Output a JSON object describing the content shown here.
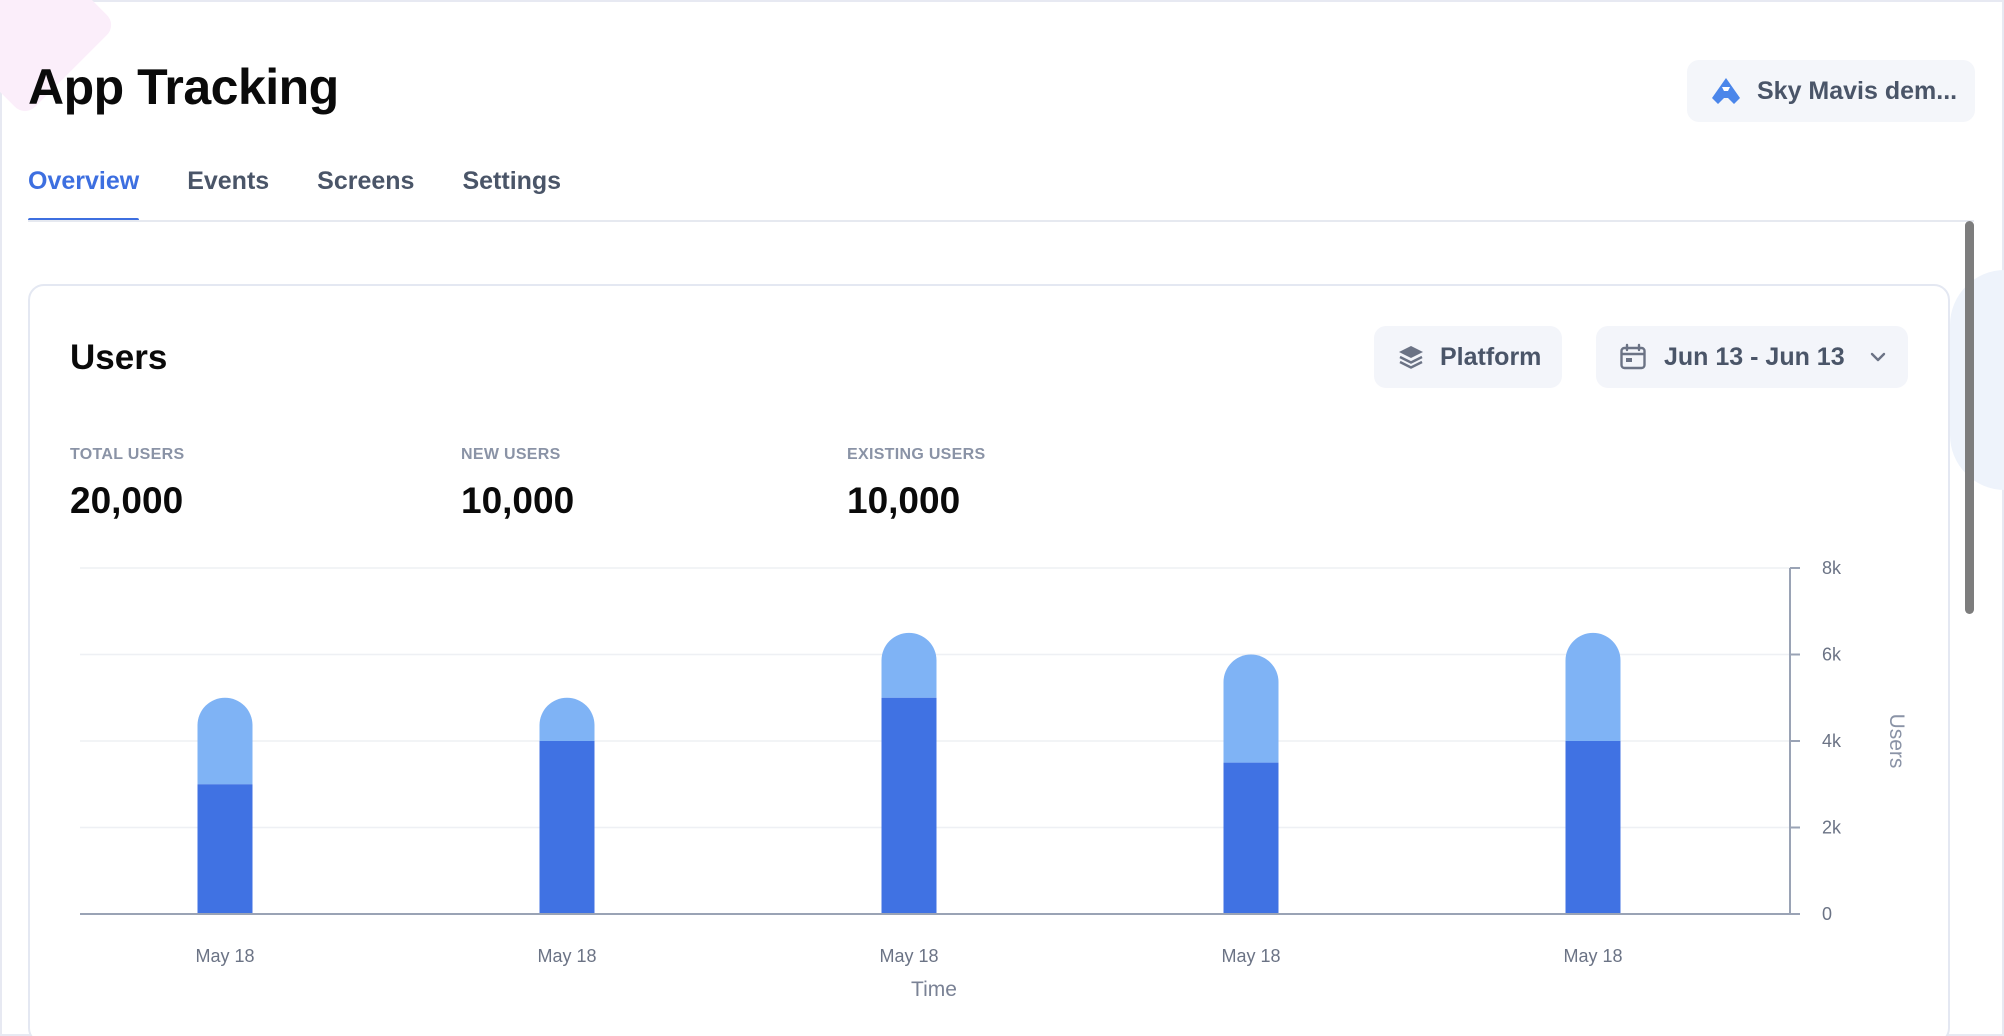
{
  "page": {
    "title": "App Tracking"
  },
  "org": {
    "label": "Sky Mavis dem..."
  },
  "tabs": [
    {
      "label": "Overview",
      "active": true
    },
    {
      "label": "Events",
      "active": false
    },
    {
      "label": "Screens",
      "active": false
    },
    {
      "label": "Settings",
      "active": false
    }
  ],
  "card": {
    "title": "Users",
    "platform_label": "Platform",
    "date_range": "Jun 13 - Jun 13"
  },
  "stats": [
    {
      "label": "TOTAL USERS",
      "value": "20,000"
    },
    {
      "label": "NEW USERS",
      "value": "10,000"
    },
    {
      "label": "EXISTING USERS",
      "value": "10,000"
    }
  ],
  "colors": {
    "accent": "#3d6fe0",
    "bar_dark": "#4072e3",
    "bar_light": "#7fb3f5",
    "text_muted": "#4a5568"
  },
  "icons": {
    "org": "sky-mavis-logo-icon",
    "platform": "layers-icon",
    "date": "calendar-icon",
    "dropdown": "chevron-down-icon"
  },
  "chart_data": {
    "type": "bar",
    "stacked": true,
    "categories": [
      "May 18",
      "May 18",
      "May 18",
      "May 18",
      "May 18"
    ],
    "series": [
      {
        "values": [
          3000,
          4000,
          5000,
          3500,
          4000
        ],
        "color": "#4072e3"
      },
      {
        "values": [
          2000,
          1000,
          1500,
          2500,
          2500
        ],
        "color": "#7fb3f5"
      }
    ],
    "xlabel": "Time",
    "ylabel": "Users",
    "ylim": [
      0,
      8000
    ],
    "yticks": [
      0,
      2000,
      4000,
      6000,
      8000
    ],
    "ytick_labels": [
      "0",
      "2k",
      "4k",
      "6k",
      "8k"
    ],
    "y_axis_side": "right",
    "grid": true
  }
}
